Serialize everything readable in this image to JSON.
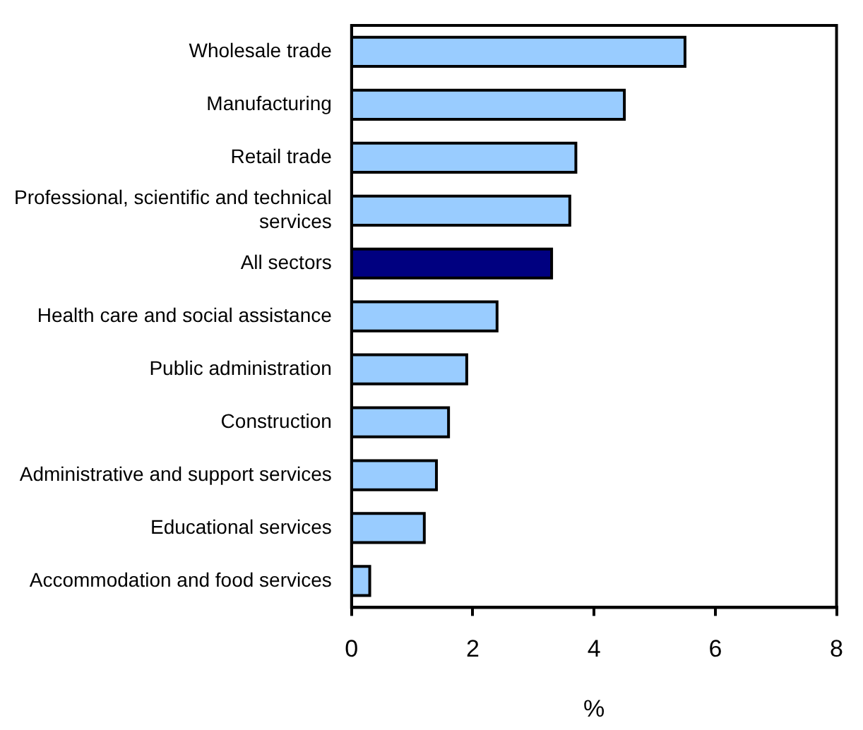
{
  "chart_data": {
    "type": "bar",
    "orientation": "horizontal",
    "xlabel": "%",
    "categories": [
      "Wholesale trade",
      "Manufacturing",
      "Retail trade",
      "Professional, scientific and technical services",
      "All sectors",
      "Health care and social assistance",
      "Public administration",
      "Construction",
      "Administrative and support services",
      "Educational services",
      "Accommodation and food services"
    ],
    "values": [
      5.5,
      4.5,
      3.7,
      3.6,
      3.3,
      2.4,
      1.9,
      1.6,
      1.4,
      1.2,
      0.3
    ],
    "colors": [
      "#99ccff",
      "#99ccff",
      "#99ccff",
      "#99ccff",
      "#000080",
      "#99ccff",
      "#99ccff",
      "#99ccff",
      "#99ccff",
      "#99ccff",
      "#99ccff"
    ],
    "xlim": [
      0,
      8
    ],
    "xticks": [
      0,
      2,
      4,
      6,
      8
    ],
    "grid": false,
    "legend": false
  }
}
